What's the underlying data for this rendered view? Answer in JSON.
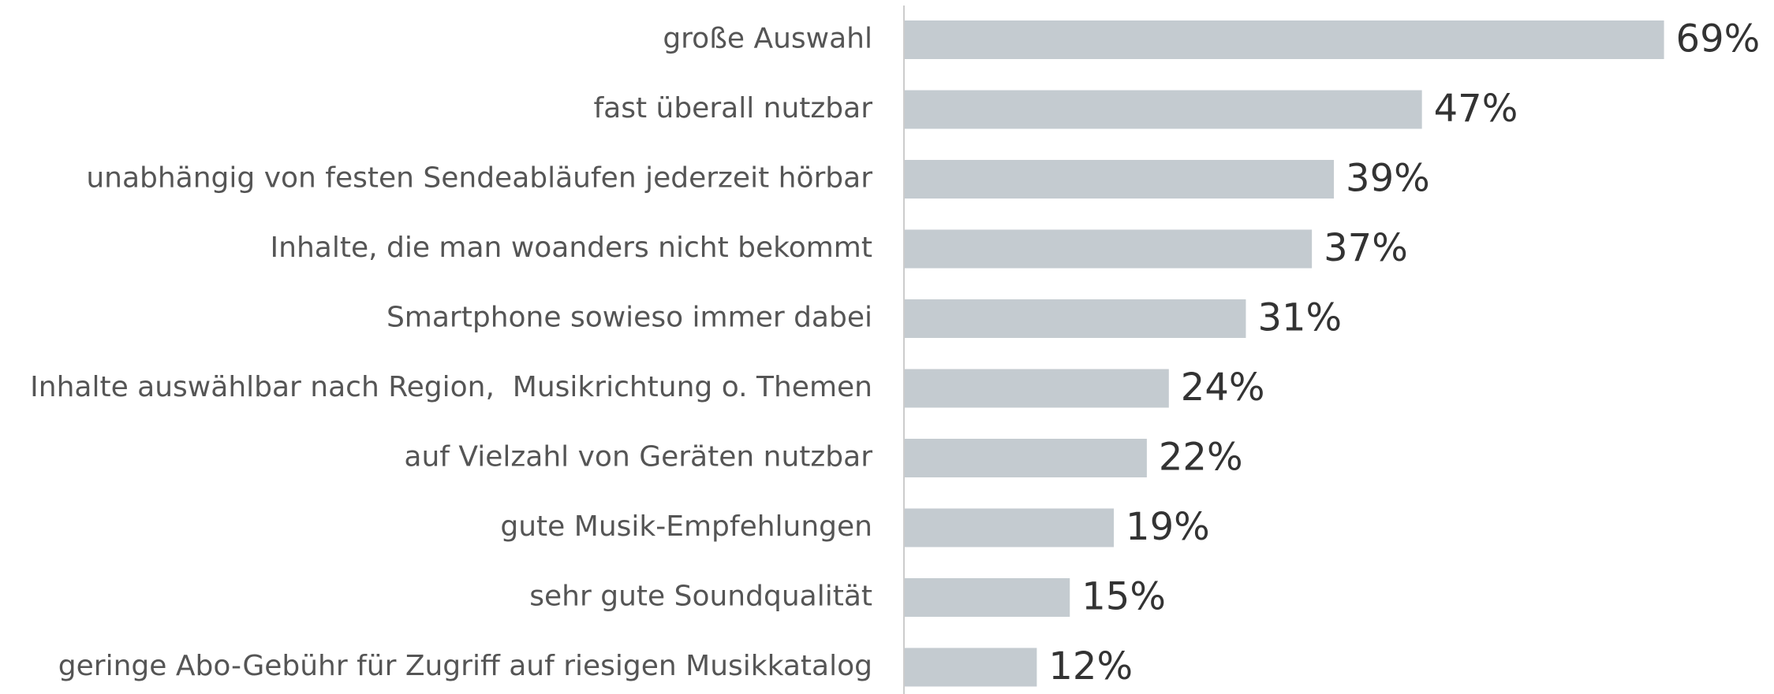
{
  "chart_data": {
    "type": "bar",
    "orientation": "horizontal",
    "categories": [
      "große Auswahl",
      "fast überall nutzbar",
      "unabhängig von festen Sendeabläufen jederzeit hörbar",
      "Inhalte, die man woanders nicht bekommt",
      "Smartphone sowieso immer dabei",
      "Inhalte auswählbar nach Region,  Musikrichtung o. Themen",
      "auf Vielzahl von Geräten nutzbar",
      "gute Musik-Empfehlungen",
      "sehr gute Soundqualität",
      "geringe Abo-Gebühr für Zugriff auf riesigen Musikkatalog"
    ],
    "values": [
      69,
      47,
      39,
      37,
      31,
      24,
      22,
      19,
      15,
      12
    ],
    "value_labels": [
      "69%",
      "47%",
      "39%",
      "37%",
      "31%",
      "24%",
      "22%",
      "19%",
      "15%",
      "12%"
    ],
    "color": "#c4cbd0"
  }
}
